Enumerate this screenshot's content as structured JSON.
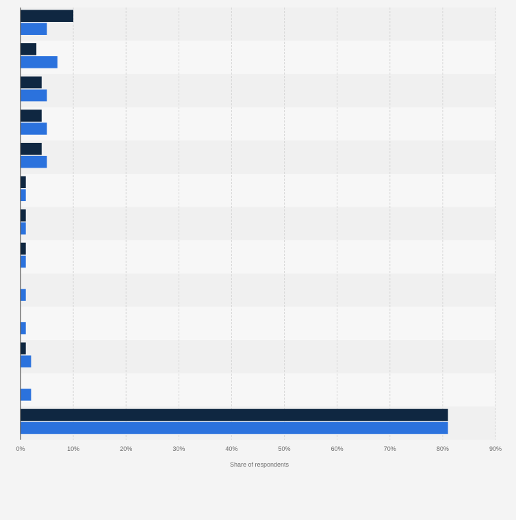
{
  "chart_data": {
    "type": "bar",
    "orientation": "horizontal",
    "categories": [
      "",
      "",
      "",
      "",
      "",
      "",
      "",
      "",
      "",
      "",
      "",
      "",
      ""
    ],
    "series": [
      {
        "values": [
          10,
          3,
          4,
          4,
          4,
          1,
          1,
          1,
          0,
          0,
          1,
          0,
          81
        ]
      },
      {
        "values": [
          5,
          7,
          5,
          5,
          5,
          1,
          1,
          1,
          1,
          1,
          2,
          2,
          81
        ]
      }
    ],
    "xlim": [
      0,
      90
    ],
    "x_ticks": [
      "0%",
      "10%",
      "20%",
      "30%",
      "40%",
      "50%",
      "60%",
      "70%",
      "80%",
      "90%"
    ],
    "xlabel": "Share of respondents",
    "grid": true,
    "legend": "none"
  },
  "colors": {
    "series_1": "#0f2741",
    "series_2": "#2b72dd",
    "band_even": "#f0f0f0",
    "band_odd": "#f7f7f7",
    "gridline": "#d6d6d6",
    "axis": "#333333"
  }
}
